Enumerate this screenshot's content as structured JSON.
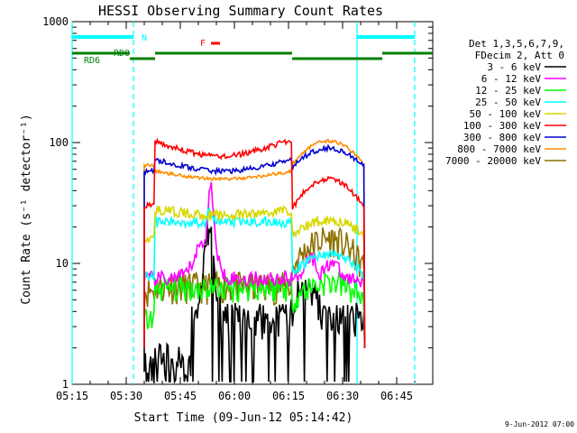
{
  "chart_data": {
    "type": "line",
    "title": "HESSI Observing Summary Count Rates",
    "xlabel": "Start Time (09-Jun-12 05:14:42)",
    "ylabel": "Count Rate (s⁻¹ detector⁻¹)",
    "yscale": "log",
    "ylim": [
      1,
      1000
    ],
    "xlim": [
      "05:15",
      "06:55"
    ],
    "x_ticks": [
      "05:15",
      "05:30",
      "05:45",
      "06:00",
      "06:15",
      "06:30",
      "06:45"
    ],
    "y_ticks": [
      "1",
      "10",
      "100",
      "1000"
    ],
    "footer": "9-Jun-2012 07:00",
    "legend_header": [
      "Det 1,3,5,6,7,9,",
      "FDecim 2, Att 0"
    ],
    "flags": {
      "night": {
        "label": "N",
        "color": "#00ffff"
      },
      "flare": {
        "label": "F",
        "color": "#ff0000"
      },
      "rd0": {
        "label": "RD0",
        "color": "#007f00"
      },
      "rd6": {
        "label": "RD6",
        "color": "#007f00"
      }
    },
    "vertical_lines": [
      {
        "x": "05:15",
        "style": "solid",
        "color": "#00ffff"
      },
      {
        "x": "05:32",
        "style": "dashed",
        "color": "#00ffff"
      },
      {
        "x": "06:34",
        "style": "solid",
        "color": "#00ffff"
      },
      {
        "x": "06:50",
        "style": "dashed",
        "color": "#00ffff"
      }
    ],
    "series": [
      {
        "name": "3 - 6 keV",
        "color": "#000000"
      },
      {
        "name": "6 - 12 keV",
        "color": "#ff00ff"
      },
      {
        "name": "12 - 25 keV",
        "color": "#00ff00"
      },
      {
        "name": "25 - 50 keV",
        "color": "#00ffff"
      },
      {
        "name": "50 - 100 keV",
        "color": "#d7d700"
      },
      {
        "name": "100 - 300 keV",
        "color": "#ff0000"
      },
      {
        "name": "300 - 800 keV",
        "color": "#0000d0"
      },
      {
        "name": "800 - 7000 keV",
        "color": "#ff8c00"
      },
      {
        "name": "7000 - 20000 keV",
        "color": "#8b7000"
      }
    ]
  }
}
